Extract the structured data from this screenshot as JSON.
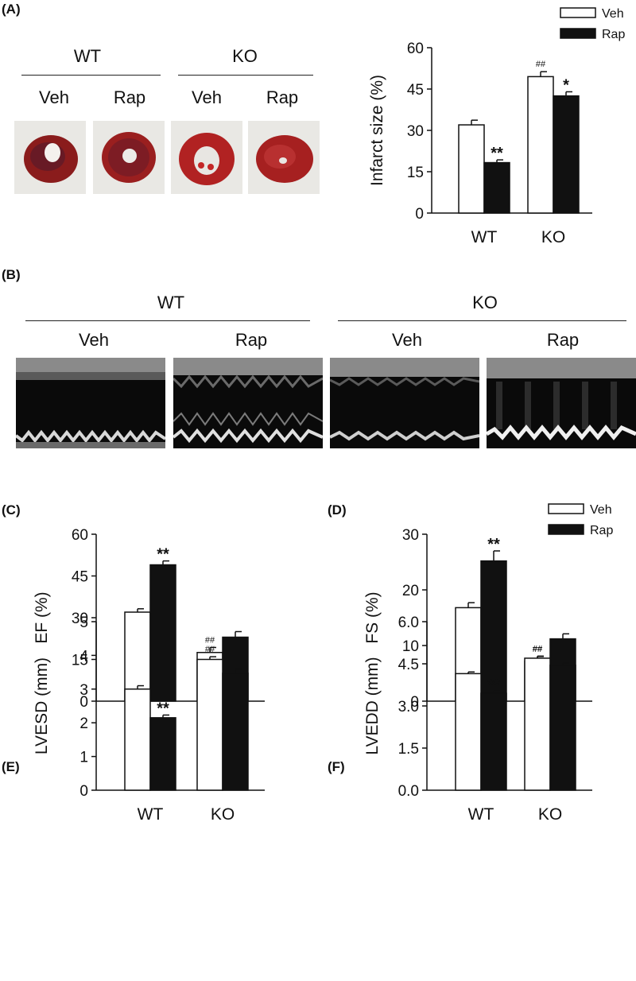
{
  "panels": {
    "A": {
      "letter": "(A)",
      "groups": [
        {
          "label": "WT",
          "conditions": [
            "Veh",
            "Rap"
          ]
        },
        {
          "label": "KO",
          "conditions": [
            "Veh",
            "Rap"
          ]
        }
      ]
    },
    "B": {
      "letter": "(B)",
      "groups": [
        {
          "label": "WT",
          "conditions": [
            "Veh",
            "Rap"
          ]
        },
        {
          "label": "KO",
          "conditions": [
            "Veh",
            "Rap"
          ]
        }
      ]
    },
    "C": {
      "letter": "(C)"
    },
    "D": {
      "letter": "(D)"
    },
    "E": {
      "letter": "(E)"
    },
    "F": {
      "letter": "(F)"
    }
  },
  "colors": {
    "veh": "#ffffff",
    "rap": "#111111",
    "stroke": "#111111"
  },
  "chart_data": [
    {
      "id": "infarct",
      "type": "bar",
      "categories": [
        "WT",
        "KO"
      ],
      "series": [
        {
          "name": "Veh",
          "values": [
            32,
            49.5
          ],
          "errors": [
            1.7,
            1.8
          ],
          "marks": [
            "",
            "##"
          ]
        },
        {
          "name": "Rap",
          "values": [
            18.3,
            42.5
          ],
          "errors": [
            1.0,
            1.5
          ],
          "marks": [
            "**",
            "*"
          ]
        }
      ],
      "ylabel": "Infarct size (%)",
      "ylim": [
        0,
        60
      ],
      "yticks": [
        "0",
        "15",
        "30",
        "45",
        "60"
      ],
      "legend": [
        "Veh",
        "Rap"
      ]
    },
    {
      "id": "ef",
      "type": "bar",
      "categories": [
        "WT",
        "KO"
      ],
      "series": [
        {
          "name": "Veh",
          "values": [
            32,
            17.5
          ],
          "errors": [
            1.2,
            1.8
          ],
          "marks": [
            "",
            "##"
          ]
        },
        {
          "name": "Rap",
          "values": [
            49,
            23
          ],
          "errors": [
            1.4,
            2.0
          ],
          "marks": [
            "**",
            ""
          ]
        }
      ],
      "ylabel": "EF  (%)",
      "ylim": [
        0,
        60
      ],
      "yticks": [
        "0",
        "15",
        "30",
        "45",
        "60"
      ]
    },
    {
      "id": "fs",
      "type": "bar",
      "categories": [
        "WT",
        "KO"
      ],
      "series": [
        {
          "name": "Veh",
          "values": [
            16.8,
            7.2
          ],
          "errors": [
            0.9,
            0.9
          ],
          "marks": [
            "",
            "##"
          ]
        },
        {
          "name": "Rap",
          "values": [
            25.2,
            11.2
          ],
          "errors": [
            1.8,
            0.9
          ],
          "marks": [
            "**",
            ""
          ]
        }
      ],
      "ylabel": "FS  (%)",
      "ylim": [
        0,
        30
      ],
      "yticks": [
        "0",
        "10",
        "20",
        "30"
      ],
      "legend": [
        "Veh",
        "Rap"
      ]
    },
    {
      "id": "lvesd",
      "type": "bar",
      "categories": [
        "WT",
        "KO"
      ],
      "series": [
        {
          "name": "Veh",
          "values": [
            3.0,
            3.88
          ],
          "errors": [
            0.1,
            0.08
          ],
          "marks": [
            "",
            "##"
          ]
        },
        {
          "name": "Rap",
          "values": [
            2.15,
            3.47
          ],
          "errors": [
            0.08,
            0.13
          ],
          "marks": [
            "**",
            ""
          ]
        }
      ],
      "ylabel": "LVESD (mm)",
      "ylim": [
        0,
        5
      ],
      "yticks": [
        "0",
        "1",
        "2",
        "3",
        "4",
        "5"
      ]
    },
    {
      "id": "lvedd",
      "type": "bar",
      "categories": [
        "WT",
        "KO"
      ],
      "series": [
        {
          "name": "Veh",
          "values": [
            4.15,
            4.7
          ],
          "errors": [
            0.06,
            0.06
          ],
          "marks": [
            "",
            "##"
          ]
        },
        {
          "name": "Rap",
          "values": [
            3.45,
            4.45
          ],
          "errors": [
            0.08,
            0.08
          ],
          "marks": [
            "**",
            ""
          ]
        }
      ],
      "ylabel": "LVEDD (mm)",
      "ylim": [
        0,
        6
      ],
      "yticks": [
        "0.0",
        "1.5",
        "3.0",
        "4.5",
        "6.0"
      ]
    }
  ]
}
